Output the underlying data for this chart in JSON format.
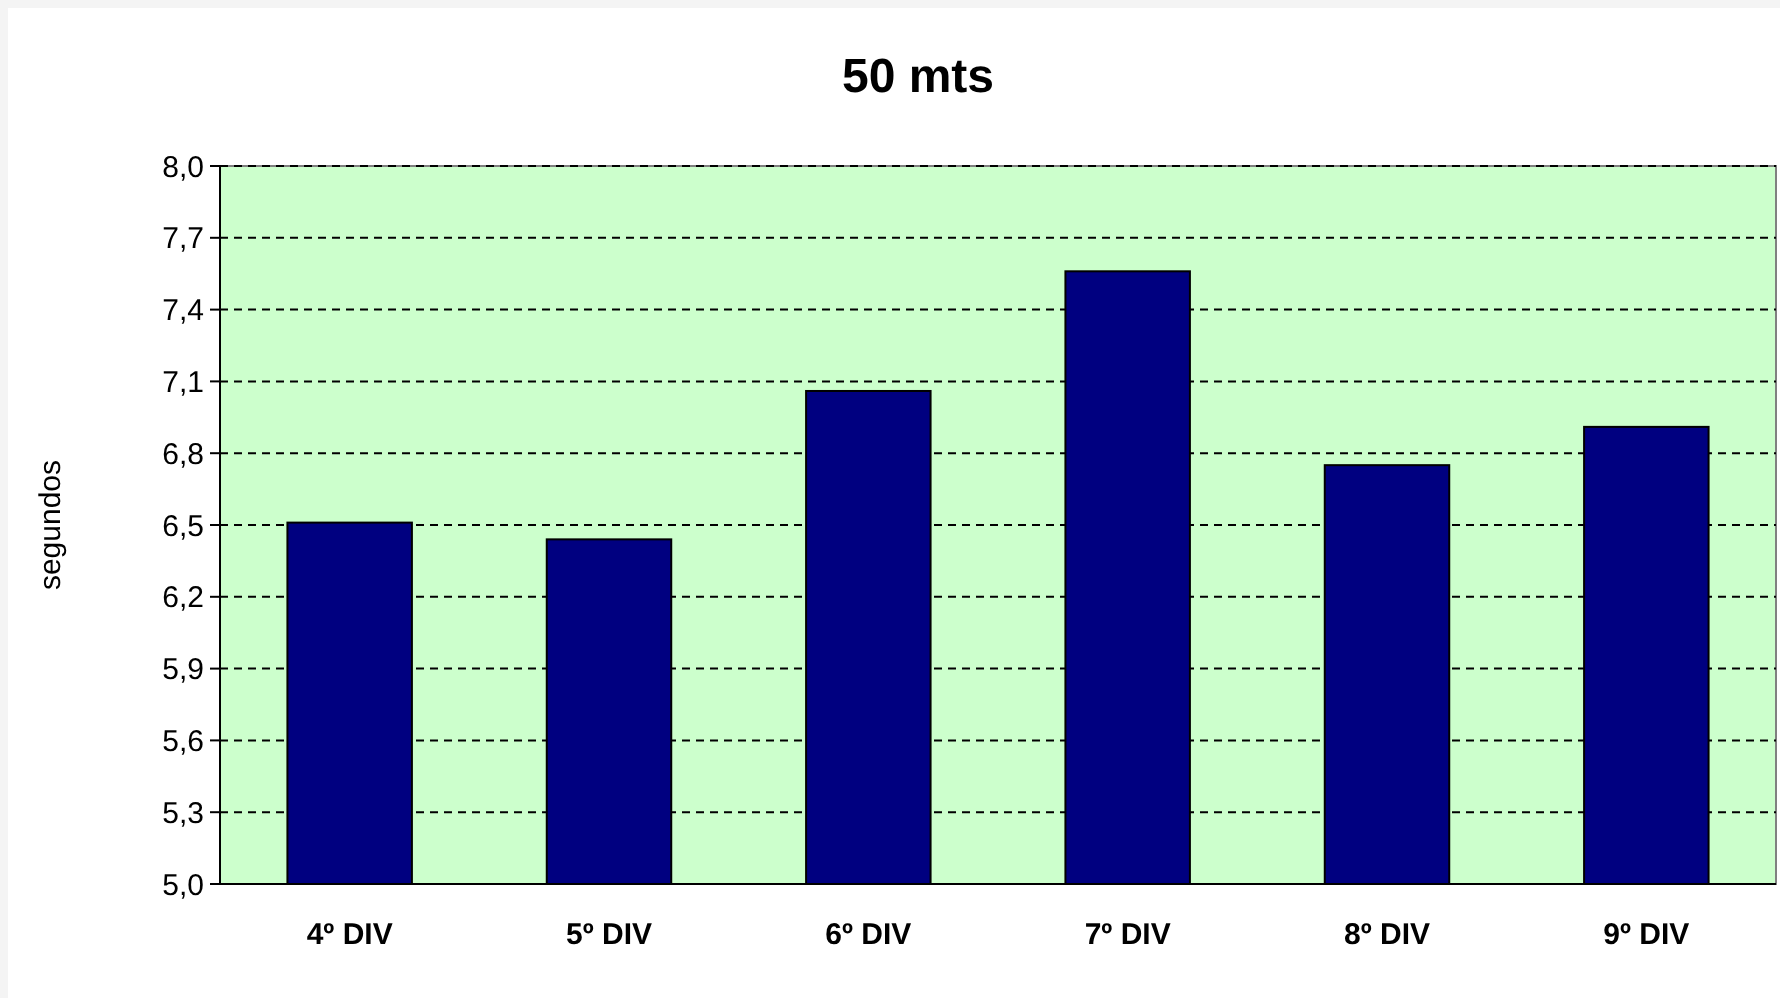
{
  "chart_data": {
    "type": "bar",
    "title": "50 mts",
    "ylabel": "segundos",
    "categories": [
      "4º DIV",
      "5º DIV",
      "6º DIV",
      "7º DIV",
      "8º DIV",
      "9º DIV"
    ],
    "values": [
      6.51,
      6.44,
      7.06,
      7.56,
      6.75,
      6.91
    ],
    "color": "#000080",
    "ylim": [
      5,
      8
    ],
    "yticks": [
      {
        "value": 5,
        "label": "5,0"
      },
      {
        "value": 5.3,
        "label": "5,3"
      },
      {
        "value": 5.6,
        "label": "5,6"
      },
      {
        "value": 5.9,
        "label": "5,9"
      },
      {
        "value": 6.2,
        "label": "6,2"
      },
      {
        "value": 6.5,
        "label": "6,5"
      },
      {
        "value": 6.8,
        "label": "6,8"
      },
      {
        "value": 7.1,
        "label": "7,1"
      },
      {
        "value": 7.4,
        "label": "7,4"
      },
      {
        "value": 7.7,
        "label": "7,7"
      },
      {
        "value": 8,
        "label": "8,0"
      }
    ],
    "grid": "y"
  }
}
